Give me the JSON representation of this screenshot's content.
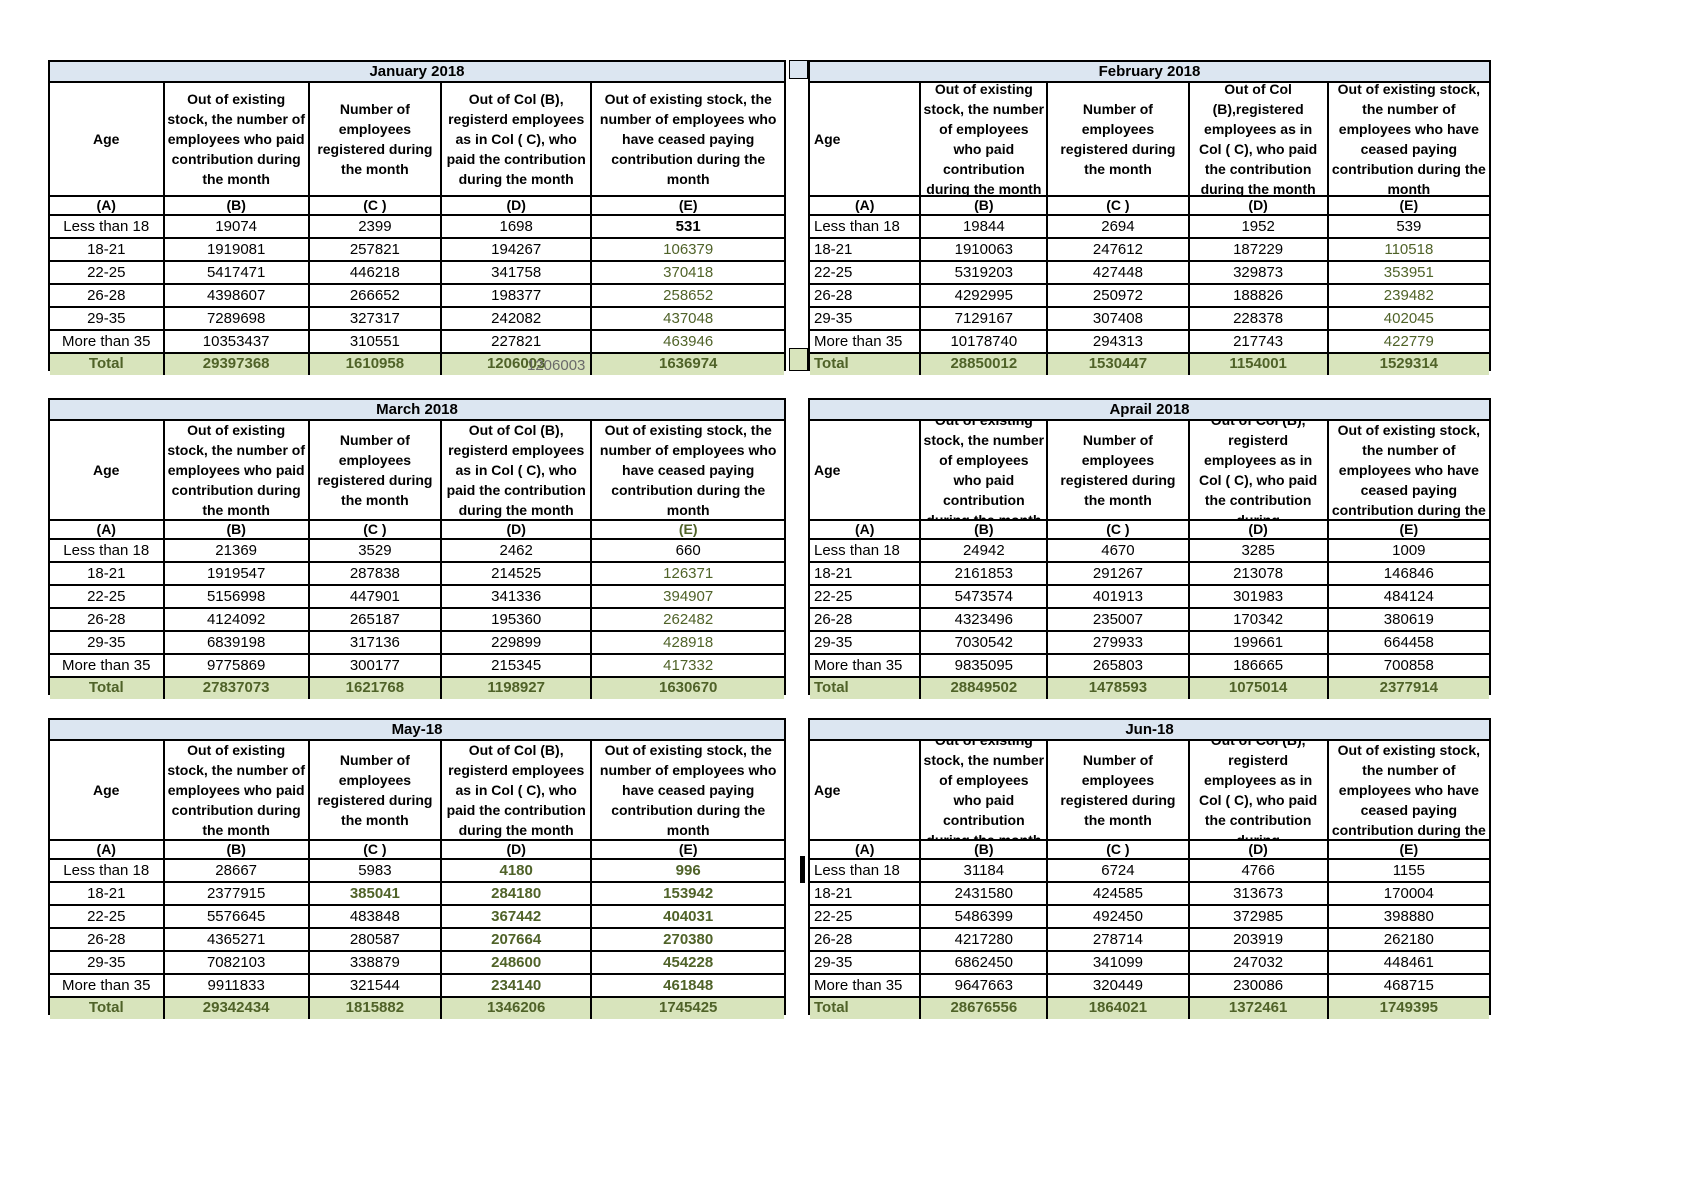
{
  "colors": {
    "title_bg": "#dce6f1",
    "total_bg": "#d8e4bc",
    "green_text": "#4f6228",
    "stray_text": "#6a6a6a"
  },
  "stray_overlay": {
    "text": "1206003"
  },
  "tables": [
    {
      "title": "January 2018",
      "headers": {
        "age": "Age",
        "b": "Out of existing stock, the number of employees who paid contribution during the month",
        "c": "Number of employees registered during the month",
        "d": "Out of Col (B), registerd employees as in Col ( C), who paid the contribution during the month",
        "e": "Out of existing stock, the number of  employees  who have ceased paying contribution during the month"
      },
      "letters": {
        "age": "(A)",
        "b": "(B)",
        "c": "(C )",
        "d": "(D)",
        "e": "(E)"
      },
      "rows": [
        {
          "age": "Less than 18",
          "b": "19074",
          "c": "2399",
          "d": "1698",
          "e": "531"
        },
        {
          "age": "18-21",
          "b": "1919081",
          "c": "257821",
          "d": "194267",
          "e": "106379"
        },
        {
          "age": "22-25",
          "b": "5417471",
          "c": "446218",
          "d": "341758",
          "e": "370418"
        },
        {
          "age": "26-28",
          "b": "4398607",
          "c": "266652",
          "d": "198377",
          "e": "258652"
        },
        {
          "age": "29-35",
          "b": "7289698",
          "c": "327317",
          "d": "242082",
          "e": "437048"
        },
        {
          "age": "More than 35",
          "b": "10353437",
          "c": "310551",
          "d": "227821",
          "e": "463946"
        }
      ],
      "total": {
        "age": "Total",
        "b": "29397368",
        "c": "1610958",
        "d": "1206003",
        "e": "1636974"
      },
      "cell_styles": {
        "0.e": "bold-black",
        "1.e": "green",
        "2.e": "green",
        "3.e": "green",
        "4.e": "green",
        "5.e": "green"
      },
      "letter_styles": {}
    },
    {
      "title": "February 2018",
      "headers": {
        "age": "Age",
        "b": "Out of existing stock, the number of employees who paid contribution during the month",
        "c": "Number of employees registered during the month",
        "d": "Out of Col (B),registered employees as in Col ( C), who paid the contribution during the month",
        "e": "Out of existing stock, the number of employees  who have ceased paying contribution during the month"
      },
      "letters": {
        "age": "(A)",
        "b": "(B)",
        "c": "(C )",
        "d": "(D)",
        "e": "(E)"
      },
      "rows": [
        {
          "age": "Less than 18",
          "b": "19844",
          "c": "2694",
          "d": "1952",
          "e": "539"
        },
        {
          "age": "18-21",
          "b": "1910063",
          "c": "247612",
          "d": "187229",
          "e": "110518"
        },
        {
          "age": "22-25",
          "b": "5319203",
          "c": "427448",
          "d": "329873",
          "e": "353951"
        },
        {
          "age": "26-28",
          "b": "4292995",
          "c": "250972",
          "d": "188826",
          "e": "239482"
        },
        {
          "age": "29-35",
          "b": "7129167",
          "c": "307408",
          "d": "228378",
          "e": "402045"
        },
        {
          "age": "More than 35",
          "b": "10178740",
          "c": "294313",
          "d": "217743",
          "e": "422779"
        }
      ],
      "total": {
        "age": "Total",
        "b": "28850012",
        "c": "1530447",
        "d": "1154001",
        "e": "1529314"
      },
      "cell_styles": {
        "1.e": "green",
        "2.e": "green",
        "3.e": "green",
        "4.e": "green",
        "5.e": "green"
      },
      "letter_styles": {}
    },
    {
      "title": "March 2018",
      "headers": {
        "age": "Age",
        "b": "Out of existing stock, the number of employees who paid contribution during the month",
        "c": "Number of employees registered during the month",
        "d": "Out of Col (B), registerd employees as in Col ( C), who paid the contribution during the month",
        "e": "Out of existing stock, the number of  employees  who have ceased paying contribution during the month"
      },
      "letters": {
        "age": "(A)",
        "b": "(B)",
        "c": "(C )",
        "d": "(D)",
        "e": "(E)"
      },
      "rows": [
        {
          "age": "Less than 18",
          "b": "21369",
          "c": "3529",
          "d": "2462",
          "e": "660"
        },
        {
          "age": "18-21",
          "b": "1919547",
          "c": "287838",
          "d": "214525",
          "e": "126371"
        },
        {
          "age": "22-25",
          "b": "5156998",
          "c": "447901",
          "d": "341336",
          "e": "394907"
        },
        {
          "age": "26-28",
          "b": "4124092",
          "c": "265187",
          "d": "195360",
          "e": "262482"
        },
        {
          "age": "29-35",
          "b": "6839198",
          "c": "317136",
          "d": "229899",
          "e": "428918"
        },
        {
          "age": "More than 35",
          "b": "9775869",
          "c": "300177",
          "d": "215345",
          "e": "417332"
        }
      ],
      "total": {
        "age": "Total",
        "b": "27837073",
        "c": "1621768",
        "d": "1198927",
        "e": "1630670"
      },
      "cell_styles": {
        "1.e": "green",
        "2.e": "green",
        "3.e": "green",
        "4.e": "green",
        "5.e": "green"
      },
      "letter_styles": {
        "e": "letter-green"
      }
    },
    {
      "title": "Aprail 2018",
      "headers": {
        "age": "Age",
        "b": "Out of existing stock, the number of employees who paid contribution during the month",
        "c": "Number of employees registered during the month",
        "d": "Out of Col (B), registerd employees as in Col ( C), who paid the contribution during",
        "e": "Out of existing stock, the number of employees  who have ceased paying contribution during the"
      },
      "letters": {
        "age": "(A)",
        "b": "(B)",
        "c": "(C )",
        "d": "(D)",
        "e": "(E)"
      },
      "rows": [
        {
          "age": "Less than 18",
          "b": "24942",
          "c": "4670",
          "d": "3285",
          "e": "1009"
        },
        {
          "age": "18-21",
          "b": "2161853",
          "c": "291267",
          "d": "213078",
          "e": "146846"
        },
        {
          "age": "22-25",
          "b": "5473574",
          "c": "401913",
          "d": "301983",
          "e": "484124"
        },
        {
          "age": "26-28",
          "b": "4323496",
          "c": "235007",
          "d": "170342",
          "e": "380619"
        },
        {
          "age": "29-35",
          "b": "7030542",
          "c": "279933",
          "d": "199661",
          "e": "664458"
        },
        {
          "age": "More than 35",
          "b": "9835095",
          "c": "265803",
          "d": "186665",
          "e": "700858"
        }
      ],
      "total": {
        "age": "Total",
        "b": "28849502",
        "c": "1478593",
        "d": "1075014",
        "e": "2377914"
      },
      "cell_styles": {},
      "letter_styles": {}
    },
    {
      "title": "May-18",
      "headers": {
        "age": "Age",
        "b": "Out of existing stock, the number of employees who paid contribution during the month",
        "c": "Number of employees registered during the month",
        "d": "Out of Col (B), registerd employees as in Col ( C), who paid the contribution during the month",
        "e": "Out of existing stock, the number of  employees  who have ceased paying contribution during the month"
      },
      "letters": {
        "age": "(A)",
        "b": "(B)",
        "c": "(C )",
        "d": "(D)",
        "e": "(E)"
      },
      "rows": [
        {
          "age": "Less than 18",
          "b": "28667",
          "c": "5983",
          "d": "4180",
          "e": "996"
        },
        {
          "age": "18-21",
          "b": "2377915",
          "c": "385041",
          "d": "284180",
          "e": "153942"
        },
        {
          "age": "22-25",
          "b": "5576645",
          "c": "483848",
          "d": "367442",
          "e": "404031"
        },
        {
          "age": "26-28",
          "b": "4365271",
          "c": "280587",
          "d": "207664",
          "e": "270380"
        },
        {
          "age": "29-35",
          "b": "7082103",
          "c": "338879",
          "d": "248600",
          "e": "454228"
        },
        {
          "age": "More than 35",
          "b": "9911833",
          "c": "321544",
          "d": "234140",
          "e": "461848"
        }
      ],
      "total": {
        "age": "Total",
        "b": "29342434",
        "c": "1815882",
        "d": "1346206",
        "e": "1745425"
      },
      "cell_styles": {
        "0.d": "green-bold",
        "0.e": "green-bold",
        "1.c": "green-bold",
        "1.d": "green-bold",
        "1.e": "green-bold",
        "2.d": "green-bold",
        "2.e": "green-bold",
        "3.d": "green-bold",
        "3.e": "green-bold",
        "4.d": "green-bold",
        "4.e": "green-bold",
        "5.d": "green-bold",
        "5.e": "green-bold"
      },
      "letter_styles": {}
    },
    {
      "title": "Jun-18",
      "headers": {
        "age": "Age",
        "b": "Out of existing stock, the number of employees who paid contribution during the month",
        "c": "Number of employees registered during the month",
        "d": "Out of Col (B), registerd employees as in Col ( C), who paid the contribution during",
        "e": "Out of existing stock, the number of employees  who have ceased paying contribution during the"
      },
      "letters": {
        "age": "(A)",
        "b": "(B)",
        "c": "(C )",
        "d": "(D)",
        "e": "(E)"
      },
      "rows": [
        {
          "age": "Less than 18",
          "b": "31184",
          "c": "6724",
          "d": "4766",
          "e": "1155"
        },
        {
          "age": "18-21",
          "b": "2431580",
          "c": "424585",
          "d": "313673",
          "e": "170004"
        },
        {
          "age": "22-25",
          "b": "5486399",
          "c": "492450",
          "d": "372985",
          "e": "398880"
        },
        {
          "age": "26-28",
          "b": "4217280",
          "c": "278714",
          "d": "203919",
          "e": "262180"
        },
        {
          "age": "29-35",
          "b": "6862450",
          "c": "341099",
          "d": "247032",
          "e": "448461"
        },
        {
          "age": "More than 35",
          "b": "9647663",
          "c": "320449",
          "d": "230086",
          "e": "468715"
        }
      ],
      "total": {
        "age": "Total",
        "b": "28676556",
        "c": "1864021",
        "d": "1372461",
        "e": "1749395"
      },
      "cell_styles": {},
      "letter_styles": {}
    }
  ]
}
